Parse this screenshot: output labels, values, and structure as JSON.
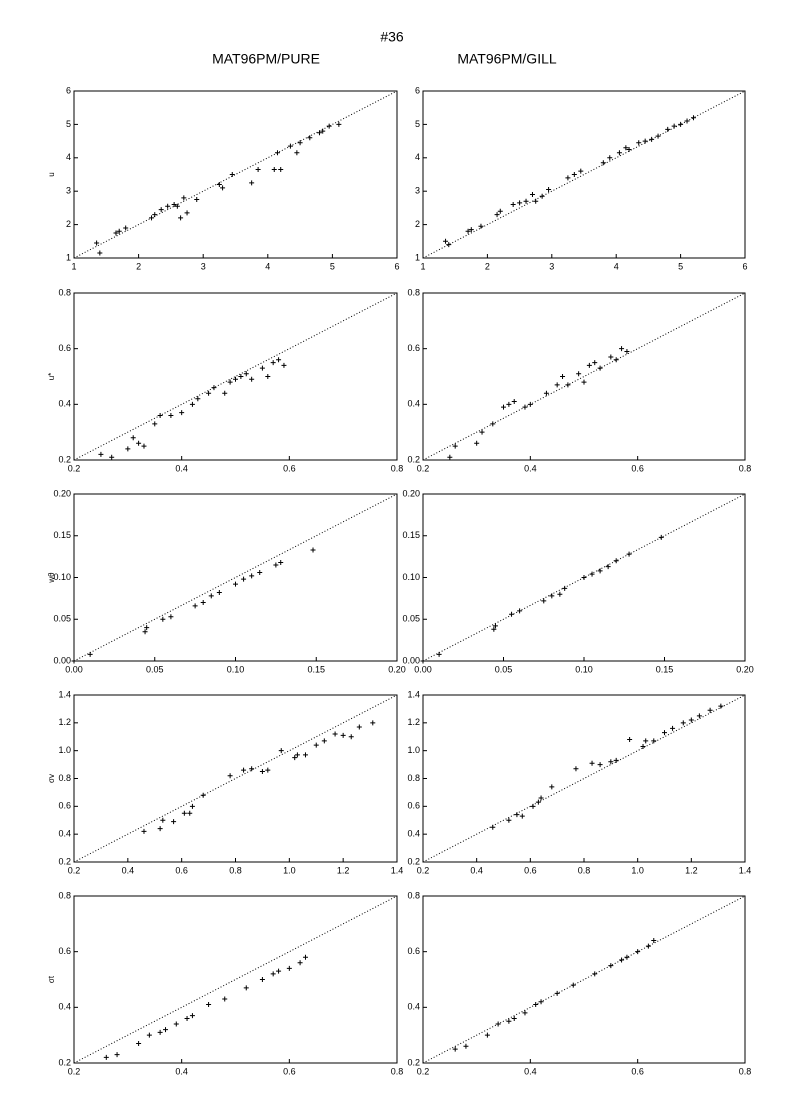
{
  "title": "#36",
  "column_titles": [
    "MAT96PM/PURE",
    "MAT96PM/GILL"
  ],
  "chart_data": [
    {
      "type": "scatter",
      "ylabel": "u",
      "color": "#000000",
      "diagonal": true,
      "x": [
        1.35,
        1.4,
        1.65,
        1.7,
        1.8,
        2.2,
        2.25,
        2.35,
        2.45,
        2.55,
        2.6,
        2.65,
        2.7,
        2.75,
        2.9,
        3.25,
        3.3,
        3.45,
        3.75,
        3.85,
        4.1,
        4.15,
        4.2,
        4.35,
        4.45,
        4.5,
        4.65,
        4.8,
        4.85,
        4.95,
        5.1
      ],
      "values": [
        1.45,
        1.15,
        1.75,
        1.8,
        1.9,
        2.2,
        2.3,
        2.45,
        2.55,
        2.6,
        2.55,
        2.2,
        2.8,
        2.35,
        2.75,
        3.2,
        3.1,
        3.5,
        3.25,
        3.65,
        3.65,
        4.15,
        3.65,
        4.35,
        4.15,
        4.45,
        4.6,
        4.75,
        4.8,
        4.95,
        5.0
      ],
      "xlim": [
        1,
        6
      ],
      "ylim": [
        1,
        6
      ],
      "xticks": [
        1,
        2,
        3,
        4,
        5,
        6
      ],
      "yticks": [
        1,
        2,
        3,
        4,
        5,
        6
      ]
    },
    {
      "type": "scatter",
      "color": "#000000",
      "diagonal": true,
      "x": [
        1.35,
        1.4,
        1.7,
        1.75,
        1.9,
        2.15,
        2.2,
        2.4,
        2.5,
        2.6,
        2.7,
        2.75,
        2.85,
        2.95,
        3.25,
        3.35,
        3.45,
        3.8,
        3.9,
        4.05,
        4.15,
        4.2,
        4.35,
        4.45,
        4.55,
        4.65,
        4.8,
        4.9,
        5.0,
        5.1,
        5.2
      ],
      "values": [
        1.5,
        1.4,
        1.8,
        1.85,
        1.95,
        2.3,
        2.4,
        2.6,
        2.65,
        2.7,
        2.9,
        2.7,
        2.85,
        3.05,
        3.4,
        3.5,
        3.6,
        3.85,
        4.0,
        4.15,
        4.3,
        4.25,
        4.45,
        4.5,
        4.55,
        4.65,
        4.85,
        4.95,
        5.0,
        5.1,
        5.2
      ],
      "xlim": [
        1,
        6
      ],
      "ylim": [
        1,
        6
      ],
      "xticks": [
        1,
        2,
        3,
        4,
        5,
        6
      ],
      "yticks": [
        1,
        2,
        3,
        4,
        5,
        6
      ]
    },
    {
      "type": "scatter",
      "ylabel": "u*",
      "color": "#000000",
      "diagonal": true,
      "x": [
        0.25,
        0.27,
        0.3,
        0.31,
        0.32,
        0.33,
        0.35,
        0.36,
        0.38,
        0.4,
        0.42,
        0.43,
        0.45,
        0.46,
        0.48,
        0.49,
        0.5,
        0.51,
        0.52,
        0.53,
        0.55,
        0.56,
        0.57,
        0.58,
        0.59
      ],
      "values": [
        0.22,
        0.21,
        0.24,
        0.28,
        0.26,
        0.25,
        0.33,
        0.36,
        0.36,
        0.37,
        0.4,
        0.42,
        0.44,
        0.46,
        0.44,
        0.48,
        0.49,
        0.5,
        0.51,
        0.49,
        0.53,
        0.5,
        0.55,
        0.56,
        0.54
      ],
      "xlim": [
        0.2,
        0.8
      ],
      "ylim": [
        0.2,
        0.8
      ],
      "xticks": [
        0.2,
        0.4,
        0.6,
        0.8
      ],
      "yticks": [
        0.2,
        0.4,
        0.6,
        0.8
      ]
    },
    {
      "type": "scatter",
      "color": "#000000",
      "diagonal": true,
      "x": [
        0.25,
        0.26,
        0.3,
        0.31,
        0.33,
        0.35,
        0.36,
        0.37,
        0.39,
        0.4,
        0.43,
        0.45,
        0.46,
        0.47,
        0.49,
        0.5,
        0.51,
        0.52,
        0.53,
        0.55,
        0.56,
        0.57,
        0.58
      ],
      "values": [
        0.21,
        0.25,
        0.26,
        0.3,
        0.33,
        0.39,
        0.4,
        0.41,
        0.39,
        0.4,
        0.44,
        0.47,
        0.5,
        0.47,
        0.51,
        0.48,
        0.54,
        0.55,
        0.53,
        0.57,
        0.56,
        0.6,
        0.59
      ],
      "xlim": [
        0.2,
        0.8
      ],
      "ylim": [
        0.2,
        0.8
      ],
      "xticks": [
        0.2,
        0.4,
        0.6,
        0.8
      ],
      "yticks": [
        0.2,
        0.4,
        0.6,
        0.8
      ]
    },
    {
      "type": "scatter",
      "ylabel": "wθ",
      "color": "#000000",
      "diagonal": true,
      "x": [
        0.0,
        0.01,
        0.044,
        0.045,
        0.055,
        0.06,
        0.075,
        0.08,
        0.085,
        0.09,
        0.1,
        0.105,
        0.11,
        0.115,
        0.125,
        0.128,
        0.148
      ],
      "values": [
        0.0,
        0.008,
        0.035,
        0.04,
        0.05,
        0.053,
        0.066,
        0.07,
        0.078,
        0.082,
        0.092,
        0.098,
        0.102,
        0.106,
        0.115,
        0.118,
        0.133
      ],
      "xlim": [
        0,
        0.2
      ],
      "ylim": [
        0,
        0.2
      ],
      "xticks": [
        {
          "value": 0,
          "label": "0.00"
        },
        0.05,
        {
          "value": 0.1,
          "label": "0.10"
        },
        0.15,
        {
          "value": 0.2,
          "label": "0.20"
        }
      ],
      "yticks": [
        {
          "value": 0,
          "label": "0.00"
        },
        0.05,
        {
          "value": 0.1,
          "label": "0.10"
        },
        0.15,
        {
          "value": 0.2,
          "label": "0.20"
        }
      ]
    },
    {
      "type": "scatter",
      "color": "#000000",
      "diagonal": true,
      "x": [
        0.0,
        0.01,
        0.044,
        0.045,
        0.055,
        0.06,
        0.075,
        0.08,
        0.085,
        0.088,
        0.1,
        0.105,
        0.11,
        0.115,
        0.12,
        0.128,
        0.148
      ],
      "values": [
        0.0,
        0.008,
        0.038,
        0.042,
        0.056,
        0.06,
        0.072,
        0.078,
        0.08,
        0.087,
        0.1,
        0.104,
        0.108,
        0.113,
        0.12,
        0.128,
        0.148
      ],
      "xlim": [
        0,
        0.2
      ],
      "ylim": [
        0,
        0.2
      ],
      "xticks": [
        {
          "value": 0,
          "label": "0.00"
        },
        0.05,
        {
          "value": 0.1,
          "label": "0.10"
        },
        0.15,
        {
          "value": 0.2,
          "label": "0.20"
        }
      ],
      "yticks": [
        {
          "value": 0,
          "label": "0.00"
        },
        0.05,
        {
          "value": 0.1,
          "label": "0.10"
        },
        0.15,
        {
          "value": 0.2,
          "label": "0.20"
        }
      ]
    },
    {
      "type": "scatter",
      "ylabel": "σv",
      "color": "#000000",
      "diagonal": true,
      "x": [
        0.46,
        0.52,
        0.53,
        0.57,
        0.61,
        0.63,
        0.64,
        0.68,
        0.78,
        0.83,
        0.86,
        0.9,
        0.92,
        0.97,
        1.02,
        1.03,
        1.06,
        1.1,
        1.13,
        1.17,
        1.2,
        1.23,
        1.26,
        1.31
      ],
      "values": [
        0.42,
        0.44,
        0.5,
        0.49,
        0.55,
        0.55,
        0.6,
        0.68,
        0.82,
        0.86,
        0.87,
        0.85,
        0.86,
        1.0,
        0.95,
        0.97,
        0.97,
        1.04,
        1.07,
        1.12,
        1.11,
        1.1,
        1.17,
        1.2
      ],
      "xlim": [
        0.2,
        1.4
      ],
      "ylim": [
        0.2,
        1.4
      ],
      "xticks": [
        0.2,
        0.4,
        0.6,
        0.8,
        {
          "value": 1,
          "label": "1.0"
        },
        1.2,
        1.4
      ],
      "yticks": [
        0.2,
        0.4,
        0.6,
        0.8,
        {
          "value": 1,
          "label": "1.0"
        },
        1.2,
        1.4
      ]
    },
    {
      "type": "scatter",
      "color": "#000000",
      "diagonal": true,
      "x": [
        0.46,
        0.52,
        0.55,
        0.57,
        0.61,
        0.63,
        0.64,
        0.68,
        0.77,
        0.83,
        0.86,
        0.9,
        0.92,
        0.97,
        1.02,
        1.03,
        1.06,
        1.1,
        1.13,
        1.17,
        1.2,
        1.23,
        1.27,
        1.31
      ],
      "values": [
        0.45,
        0.5,
        0.54,
        0.53,
        0.6,
        0.63,
        0.66,
        0.74,
        0.87,
        0.91,
        0.9,
        0.92,
        0.93,
        1.08,
        1.03,
        1.07,
        1.07,
        1.13,
        1.16,
        1.2,
        1.22,
        1.25,
        1.29,
        1.32
      ],
      "xlim": [
        0.2,
        1.4
      ],
      "ylim": [
        0.2,
        1.4
      ],
      "xticks": [
        0.2,
        0.4,
        0.6,
        0.8,
        {
          "value": 1,
          "label": "1.0"
        },
        1.2,
        1.4
      ],
      "yticks": [
        0.2,
        0.4,
        0.6,
        0.8,
        {
          "value": 1,
          "label": "1.0"
        },
        1.2,
        1.4
      ]
    },
    {
      "type": "scatter",
      "ylabel": "σt",
      "color": "#000000",
      "diagonal": true,
      "x": [
        0.26,
        0.28,
        0.32,
        0.34,
        0.36,
        0.37,
        0.39,
        0.41,
        0.42,
        0.45,
        0.48,
        0.52,
        0.55,
        0.57,
        0.58,
        0.6,
        0.62,
        0.63
      ],
      "values": [
        0.22,
        0.23,
        0.27,
        0.3,
        0.31,
        0.32,
        0.34,
        0.36,
        0.37,
        0.41,
        0.43,
        0.47,
        0.5,
        0.52,
        0.53,
        0.54,
        0.56,
        0.58
      ],
      "xlim": [
        0.2,
        0.8
      ],
      "ylim": [
        0.2,
        0.8
      ],
      "xticks": [
        0.2,
        0.4,
        0.6,
        0.8
      ],
      "yticks": [
        0.2,
        0.4,
        0.6,
        0.8
      ]
    },
    {
      "type": "scatter",
      "color": "#000000",
      "diagonal": true,
      "x": [
        0.26,
        0.28,
        0.32,
        0.34,
        0.36,
        0.37,
        0.39,
        0.41,
        0.42,
        0.45,
        0.48,
        0.52,
        0.55,
        0.57,
        0.58,
        0.6,
        0.62,
        0.63
      ],
      "values": [
        0.25,
        0.26,
        0.3,
        0.34,
        0.35,
        0.36,
        0.38,
        0.41,
        0.42,
        0.45,
        0.48,
        0.52,
        0.55,
        0.57,
        0.58,
        0.6,
        0.62,
        0.64
      ],
      "xlim": [
        0.2,
        0.8
      ],
      "ylim": [
        0.2,
        0.8
      ],
      "xticks": [
        0.2,
        0.4,
        0.6,
        0.8
      ],
      "yticks": [
        0.2,
        0.4,
        0.6,
        0.8
      ]
    }
  ]
}
